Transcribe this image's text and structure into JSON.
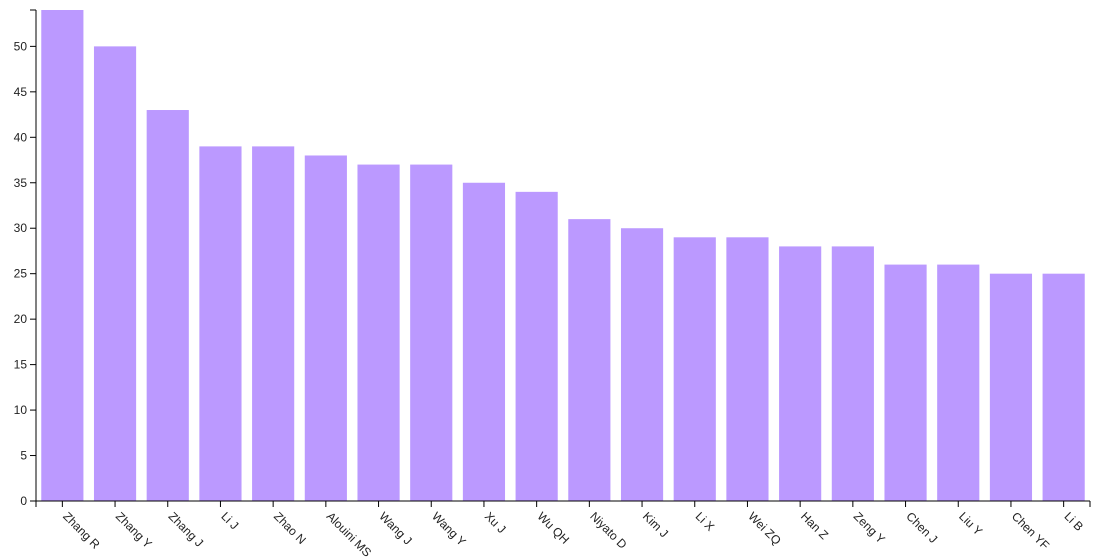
{
  "chart_data": {
    "type": "bar",
    "title": "",
    "xlabel": "",
    "ylabel": "",
    "categories": [
      "Zhang R",
      "Zhang Y",
      "Zhang J",
      "Li J",
      "Zhao N",
      "Alouini MS",
      "Wang J",
      "Wang Y",
      "Xu J",
      "Wu QH",
      "Niyato D",
      "Kim J",
      "Li X",
      "Wei ZQ",
      "Han Z",
      "Zeng Y",
      "Chen J",
      "Liu Y",
      "Chen YF",
      "Li B"
    ],
    "values": [
      54,
      50,
      43,
      39,
      39,
      38,
      37,
      37,
      35,
      34,
      31,
      30,
      29,
      29,
      28,
      28,
      26,
      26,
      25,
      25
    ],
    "ylim": [
      0,
      54
    ],
    "yticks": [
      0,
      5,
      10,
      15,
      20,
      25,
      30,
      35,
      40,
      45,
      50
    ],
    "bar_color": "#bb99ff",
    "grid": false,
    "legend": "none"
  }
}
